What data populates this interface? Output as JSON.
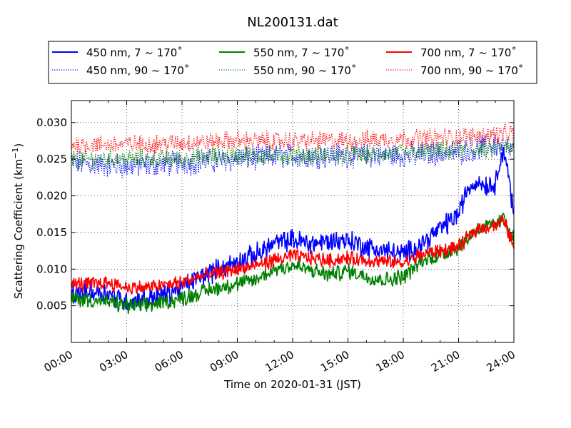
{
  "chart_data": {
    "type": "line",
    "title": "NL200131.dat",
    "xlabel": "Time on 2020-01-31 (JST)",
    "ylabel_main": "Scattering Coefficient (km",
    "ylabel_exp": "−1",
    "ylabel_close": ")",
    "x_unit": "hours",
    "xlim": [
      0,
      24
    ],
    "ylim": [
      0.0,
      0.033
    ],
    "x_ticks": [
      0,
      3,
      6,
      9,
      12,
      15,
      18,
      21,
      24
    ],
    "x_tick_labels": [
      "00:00",
      "03:00",
      "06:00",
      "09:00",
      "12:00",
      "15:00",
      "18:00",
      "21:00",
      "24:00"
    ],
    "y_ticks": [
      0.005,
      0.01,
      0.015,
      0.02,
      0.025,
      0.03
    ],
    "y_tick_labels": [
      "0.005",
      "0.010",
      "0.015",
      "0.020",
      "0.025",
      "0.030"
    ],
    "grid": true,
    "legend_position": "top",
    "series": [
      {
        "name": "450 nm, 7 ~ 170˚",
        "color": "#0000ff",
        "style": "solid",
        "noise": 0.0012,
        "x": [
          0,
          1,
          2,
          3,
          4,
          5,
          6,
          7,
          8,
          9,
          10,
          11,
          12,
          13,
          14,
          15,
          16,
          17,
          18,
          19,
          20,
          21,
          21.5,
          22,
          22.5,
          23,
          23.3,
          23.6,
          24
        ],
        "y": [
          0.0065,
          0.007,
          0.0068,
          0.0055,
          0.006,
          0.0065,
          0.0075,
          0.009,
          0.01,
          0.011,
          0.012,
          0.0135,
          0.014,
          0.0135,
          0.0138,
          0.014,
          0.013,
          0.0125,
          0.012,
          0.0135,
          0.0155,
          0.0175,
          0.021,
          0.022,
          0.0215,
          0.0215,
          0.026,
          0.025,
          0.017
        ]
      },
      {
        "name": "450 nm, 90 ~ 170˚",
        "color": "#0000ff",
        "style": "dotted",
        "noise": 0.0014,
        "x": [
          0,
          3,
          6,
          9,
          12,
          15,
          18,
          21,
          22,
          23,
          24
        ],
        "y": [
          0.0245,
          0.024,
          0.0245,
          0.025,
          0.0255,
          0.0255,
          0.0255,
          0.026,
          0.0265,
          0.027,
          0.026
        ]
      },
      {
        "name": "550 nm, 7 ~ 170˚",
        "color": "#008000",
        "style": "solid",
        "noise": 0.0009,
        "x": [
          0,
          1,
          2,
          3,
          4,
          5,
          6,
          7,
          8,
          9,
          10,
          11,
          12,
          13,
          14,
          15,
          16,
          17,
          18,
          19,
          20,
          21,
          22,
          23,
          23.5,
          24
        ],
        "y": [
          0.006,
          0.0058,
          0.0055,
          0.005,
          0.005,
          0.0055,
          0.006,
          0.0068,
          0.0075,
          0.008,
          0.0085,
          0.01,
          0.0105,
          0.0098,
          0.0092,
          0.0098,
          0.009,
          0.0085,
          0.009,
          0.011,
          0.012,
          0.013,
          0.0155,
          0.016,
          0.017,
          0.014
        ]
      },
      {
        "name": "550 nm, 90 ~ 170˚",
        "color": "#008000",
        "style": "dotted",
        "noise": 0.0011,
        "x": [
          0,
          3,
          6,
          9,
          12,
          15,
          18,
          21,
          24
        ],
        "y": [
          0.025,
          0.025,
          0.025,
          0.0255,
          0.0255,
          0.0255,
          0.0258,
          0.0262,
          0.0265
        ]
      },
      {
        "name": "700 nm, 7 ~ 170˚",
        "color": "#ff0000",
        "style": "solid",
        "noise": 0.0008,
        "x": [
          0,
          1,
          2,
          3,
          4,
          5,
          6,
          7,
          8,
          9,
          10,
          11,
          12,
          13,
          14,
          15,
          16,
          17,
          18,
          19,
          20,
          21,
          22,
          23,
          23.5,
          24
        ],
        "y": [
          0.008,
          0.008,
          0.0082,
          0.0075,
          0.0075,
          0.0078,
          0.0082,
          0.009,
          0.0095,
          0.01,
          0.0105,
          0.0112,
          0.0118,
          0.0115,
          0.0112,
          0.0115,
          0.0112,
          0.011,
          0.0108,
          0.012,
          0.0125,
          0.013,
          0.0155,
          0.016,
          0.0165,
          0.013
        ]
      },
      {
        "name": "700 nm, 90 ~ 170˚",
        "color": "#ff0000",
        "style": "dotted",
        "noise": 0.0011,
        "x": [
          0,
          3,
          6,
          9,
          12,
          15,
          18,
          21,
          24
        ],
        "y": [
          0.027,
          0.027,
          0.0272,
          0.0275,
          0.0275,
          0.0275,
          0.0278,
          0.028,
          0.0285
        ]
      }
    ]
  }
}
